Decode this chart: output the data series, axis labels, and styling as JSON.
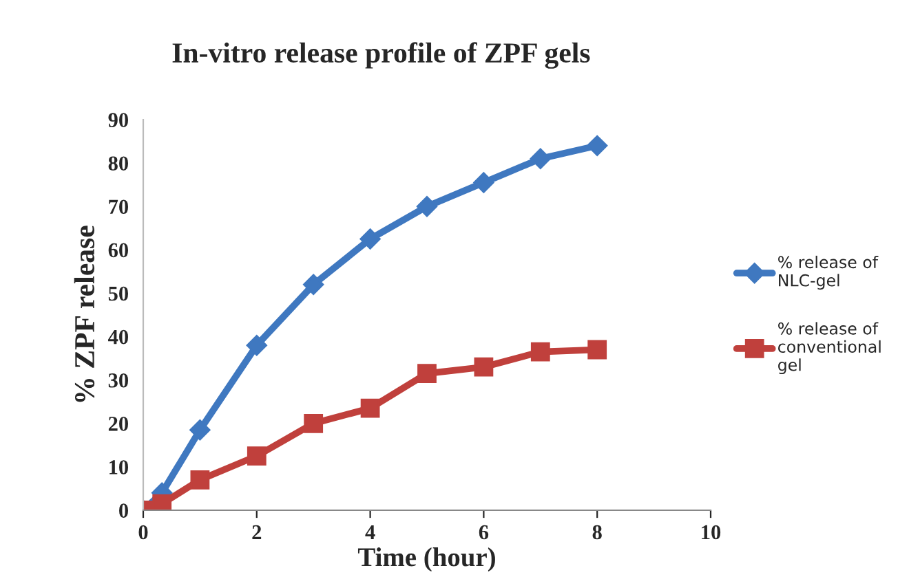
{
  "chart_data": {
    "type": "line",
    "title": "In-vitro release profile of ZPF gels",
    "xlabel": "Time (hour)",
    "ylabel": "% ZPF release",
    "series": [
      {
        "name": "% release of NLC-gel",
        "color": "#3f78c0",
        "marker": "diamond",
        "x": [
          0,
          0.33,
          1,
          2,
          3,
          4,
          5,
          6,
          7,
          8
        ],
        "values": [
          0,
          4,
          18.5,
          38,
          52,
          62.5,
          70,
          75.5,
          81,
          84
        ]
      },
      {
        "name": "% release of conventional gel",
        "color": "#c0403c",
        "marker": "square",
        "x": [
          0,
          0.1,
          0.33,
          1,
          2,
          3,
          4,
          5,
          6,
          7,
          8
        ],
        "values": [
          0,
          0,
          1.5,
          7,
          12.5,
          20,
          23.5,
          31.5,
          33,
          36.5,
          37
        ]
      }
    ],
    "xlim": [
      0,
      10
    ],
    "xticks": [
      0,
      2,
      4,
      6,
      8,
      10
    ],
    "ylim": [
      0,
      90
    ],
    "yticks": [
      0,
      10,
      20,
      30,
      40,
      50,
      60,
      70,
      80,
      90
    ],
    "grid": false,
    "legend": "right"
  }
}
